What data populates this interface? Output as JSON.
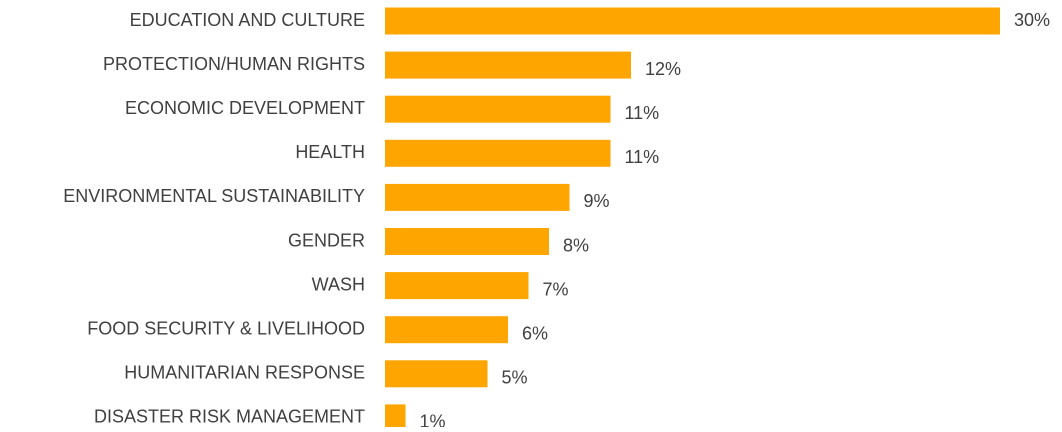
{
  "chart_data": {
    "type": "bar",
    "orientation": "horizontal",
    "categories": [
      "EDUCATION AND CULTURE",
      "PROTECTION/HUMAN RIGHTS",
      "ECONOMIC DEVELOPMENT",
      "HEALTH",
      "ENVIRONMENTAL SUSTAINABILITY",
      "GENDER",
      "WASH",
      "FOOD SECURITY & LIVELIHOOD",
      "HUMANITARIAN RESPONSE",
      "DISASTER RISK MANAGEMENT"
    ],
    "values": [
      30,
      12,
      11,
      11,
      9,
      8,
      7,
      6,
      5,
      1
    ],
    "value_labels": [
      "30%",
      "12%",
      "11%",
      "11%",
      "9%",
      "8%",
      "7%",
      "6%",
      "5%",
      "1%"
    ],
    "color": "#ffa500"
  }
}
